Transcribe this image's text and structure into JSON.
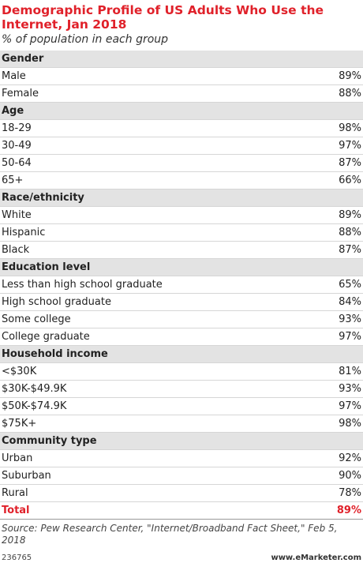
{
  "header": {
    "title": "Demographic Profile of US Adults Who Use the Internet, Jan 2018",
    "subtitle": "% of population in each group"
  },
  "table": {
    "sections": [
      {
        "label": "Gender",
        "rows": [
          [
            "Male",
            "89%"
          ],
          [
            "Female",
            "88%"
          ]
        ]
      },
      {
        "label": "Age",
        "rows": [
          [
            "18-29",
            "98%"
          ],
          [
            "30-49",
            "97%"
          ],
          [
            "50-64",
            "87%"
          ],
          [
            "65+",
            "66%"
          ]
        ]
      },
      {
        "label": "Race/ethnicity",
        "rows": [
          [
            "White",
            "89%"
          ],
          [
            "Hispanic",
            "88%"
          ],
          [
            "Black",
            "87%"
          ]
        ]
      },
      {
        "label": "Education level",
        "rows": [
          [
            "Less than high school graduate",
            "65%"
          ],
          [
            "High school graduate",
            "84%"
          ],
          [
            "Some college",
            "93%"
          ],
          [
            "College graduate",
            "97%"
          ]
        ]
      },
      {
        "label": "Household income",
        "rows": [
          [
            "<$30K",
            "81%"
          ],
          [
            "$30K-$49.9K",
            "93%"
          ],
          [
            "$50K-$74.9K",
            "97%"
          ],
          [
            "$75K+",
            "98%"
          ]
        ]
      },
      {
        "label": "Community type",
        "rows": [
          [
            "Urban",
            "92%"
          ],
          [
            "Suburban",
            "90%"
          ],
          [
            "Rural",
            "78%"
          ]
        ]
      }
    ],
    "total": [
      "Total",
      "89%"
    ]
  },
  "footer": {
    "source": "Source: Pew Research Center, \"Internet/Broadband Fact Sheet,\" Feb 5, 2018",
    "id": "236765",
    "brand": "www.eMarketer.com"
  }
}
